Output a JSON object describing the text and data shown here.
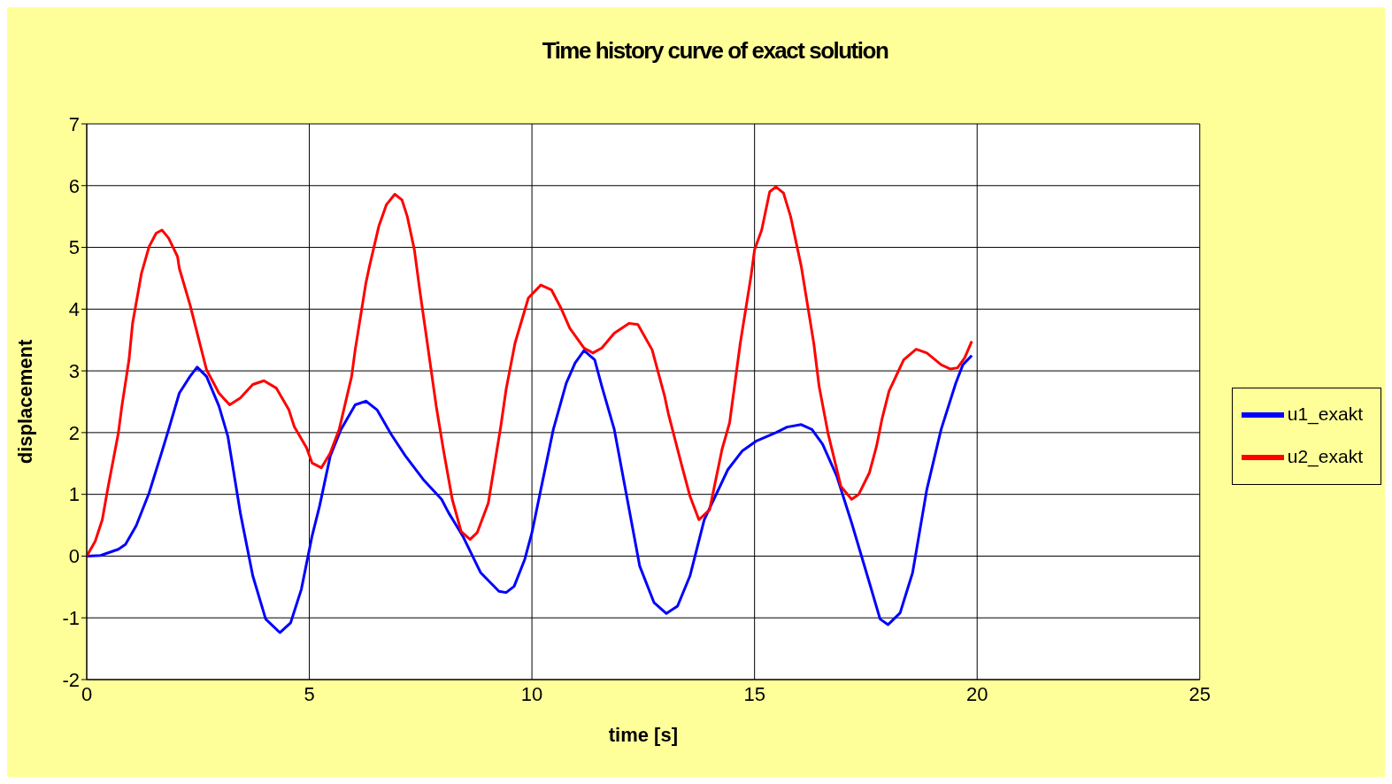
{
  "chart_data": {
    "type": "line",
    "title": "Time history curve of exact solution",
    "xlabel": "time [s]",
    "ylabel": "displacement",
    "xlim": [
      0,
      25
    ],
    "xticks": [
      0,
      5,
      10,
      15,
      20,
      25
    ],
    "ylim": [
      -2,
      7
    ],
    "yticks": [
      -2,
      -1,
      0,
      1,
      2,
      3,
      4,
      5,
      6,
      7
    ],
    "grid": true,
    "legend": "right",
    "marker": "none",
    "line_style": "solid",
    "series": [
      {
        "name": "u1_exakt",
        "color": "#0000ff",
        "x": [
          0,
          0.31,
          0.71,
          0.87,
          1.11,
          1.4,
          1.68,
          1.84,
          2.08,
          2.32,
          2.48,
          2.69,
          2.97,
          3.17,
          3.45,
          3.73,
          4.02,
          4.34,
          4.58,
          4.82,
          5.06,
          5.23,
          5.47,
          5.71,
          6.03,
          6.27,
          6.52,
          6.84,
          7.16,
          7.56,
          7.97,
          8.13,
          8.45,
          8.85,
          9.26,
          9.42,
          9.6,
          9.84,
          10.0,
          10.2,
          10.48,
          10.77,
          10.97,
          11.17,
          11.41,
          11.57,
          11.85,
          12.1,
          12.42,
          12.74,
          13.02,
          13.27,
          13.55,
          13.87,
          14.4,
          14.72,
          15.03,
          15.48,
          15.73,
          16.05,
          16.29,
          16.53,
          16.85,
          17.18,
          17.58,
          17.82,
          18.0,
          18.27,
          18.55,
          18.87,
          19.19,
          19.52,
          19.68,
          19.88
        ],
        "values": [
          0,
          0.01,
          0.11,
          0.19,
          0.49,
          1.02,
          1.67,
          2.05,
          2.64,
          2.91,
          3.06,
          2.91,
          2.43,
          1.94,
          0.7,
          -0.32,
          -1.02,
          -1.24,
          -1.08,
          -0.54,
          0.32,
          0.81,
          1.62,
          2.05,
          2.45,
          2.51,
          2.37,
          1.97,
          1.62,
          1.24,
          0.92,
          0.7,
          0.32,
          -0.27,
          -0.57,
          -0.59,
          -0.49,
          -0.05,
          0.38,
          1.08,
          2.05,
          2.8,
          3.13,
          3.33,
          3.18,
          2.75,
          2.05,
          1.08,
          -0.16,
          -0.75,
          -0.93,
          -0.81,
          -0.32,
          0.59,
          1.4,
          1.7,
          1.86,
          2.0,
          2.09,
          2.13,
          2.05,
          1.81,
          1.29,
          0.54,
          -0.43,
          -1.02,
          -1.11,
          -0.92,
          -0.27,
          1.08,
          2.05,
          2.8,
          3.1,
          3.25
        ]
      },
      {
        "name": "u2_exakt",
        "color": "#ff0000",
        "x": [
          0,
          0.19,
          0.35,
          0.47,
          0.71,
          0.79,
          0.95,
          1.03,
          1.23,
          1.4,
          1.56,
          1.69,
          1.84,
          2.04,
          2.08,
          2.32,
          2.52,
          2.69,
          2.97,
          3.21,
          3.45,
          3.73,
          3.98,
          4.26,
          4.54,
          4.66,
          4.94,
          5.06,
          5.27,
          5.47,
          5.67,
          5.95,
          6.03,
          6.27,
          6.35,
          6.56,
          6.73,
          6.92,
          7.08,
          7.2,
          7.36,
          7.48,
          7.65,
          7.85,
          8.01,
          8.21,
          8.41,
          8.61,
          8.77,
          9.02,
          9.3,
          9.42,
          9.62,
          9.92,
          10.2,
          10.44,
          10.65,
          10.85,
          11.17,
          11.37,
          11.57,
          11.85,
          12.18,
          12.38,
          12.7,
          12.98,
          13.06,
          13.35,
          13.55,
          13.75,
          13.99,
          14.27,
          14.44,
          14.68,
          14.92,
          15.0,
          15.16,
          15.34,
          15.48,
          15.65,
          15.81,
          16.05,
          16.33,
          16.45,
          16.65,
          16.94,
          17.18,
          17.34,
          17.58,
          17.74,
          17.86,
          18.02,
          18.35,
          18.63,
          18.87,
          19.19,
          19.4,
          19.56,
          19.72,
          19.88
        ],
        "values": [
          0,
          0.24,
          0.59,
          1.08,
          1.99,
          2.43,
          3.18,
          3.77,
          4.58,
          5.01,
          5.23,
          5.28,
          5.15,
          4.85,
          4.66,
          4.07,
          3.5,
          3.02,
          2.64,
          2.45,
          2.56,
          2.78,
          2.84,
          2.72,
          2.37,
          2.1,
          1.75,
          1.51,
          1.43,
          1.67,
          2.05,
          2.91,
          3.34,
          4.42,
          4.69,
          5.34,
          5.69,
          5.86,
          5.77,
          5.5,
          4.96,
          4.31,
          3.45,
          2.43,
          1.73,
          0.92,
          0.4,
          0.27,
          0.38,
          0.86,
          2.1,
          2.7,
          3.45,
          4.18,
          4.39,
          4.31,
          4.02,
          3.69,
          3.37,
          3.29,
          3.37,
          3.61,
          3.77,
          3.75,
          3.34,
          2.59,
          2.32,
          1.51,
          0.97,
          0.59,
          0.75,
          1.73,
          2.16,
          3.45,
          4.53,
          4.96,
          5.28,
          5.9,
          5.98,
          5.88,
          5.5,
          4.69,
          3.45,
          2.75,
          1.99,
          1.13,
          0.92,
          1.0,
          1.35,
          1.78,
          2.21,
          2.67,
          3.18,
          3.35,
          3.29,
          3.1,
          3.03,
          3.05,
          3.21,
          3.48
        ]
      }
    ]
  }
}
